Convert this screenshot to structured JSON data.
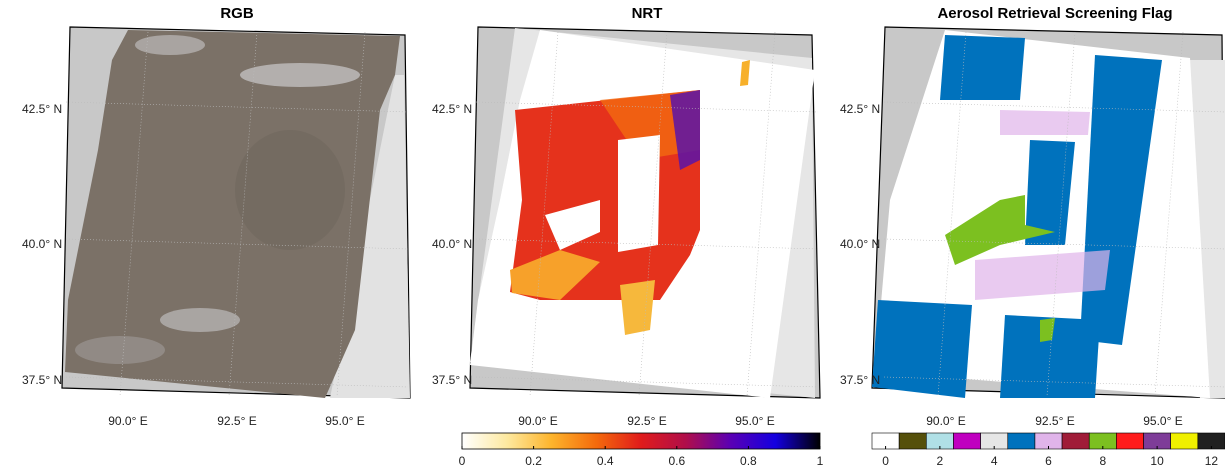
{
  "panels": [
    {
      "title": "RGB",
      "lat_labels": [
        "42.5° N",
        "40.0° N",
        "37.5° N"
      ],
      "lon_labels": [
        "90.0° E",
        "92.5° E",
        "95.0° E"
      ]
    },
    {
      "title": "NRT",
      "lat_labels": [
        "42.5° N",
        "40.0° N",
        "37.5° N"
      ],
      "lon_labels": [
        "90.0° E",
        "92.5° E",
        "95.0° E"
      ]
    },
    {
      "title": "Aerosol Retrieval Screening Flag",
      "lat_labels": [
        "42.5° N",
        "40.0° N",
        "37.5° N"
      ],
      "lon_labels": [
        "90.0° E",
        "92.5° E",
        "95.0° E"
      ]
    }
  ],
  "colorbars": {
    "nrt": {
      "lim": [
        0,
        1
      ],
      "ticks": [
        0,
        0.2,
        0.4,
        0.6,
        0.8,
        1
      ],
      "colors": [
        "#ffffff",
        "#fde9a0",
        "#fdb42c",
        "#f46a0c",
        "#e01b1b",
        "#b00e4a",
        "#5a00b4",
        "#1400e0",
        "#000000"
      ]
    },
    "flag": {
      "ticks": [
        0,
        2,
        4,
        6,
        8,
        10,
        12
      ],
      "colors": [
        "#ffffff",
        "#55500a",
        "#b0e0e6",
        "#c000c0",
        "#e6e6e6",
        "#0072bd",
        "#e0b4ea",
        "#a01c38",
        "#7cc020",
        "#ff1c1c",
        "#7e3c98",
        "#f0f000",
        "#202020"
      ]
    }
  }
}
